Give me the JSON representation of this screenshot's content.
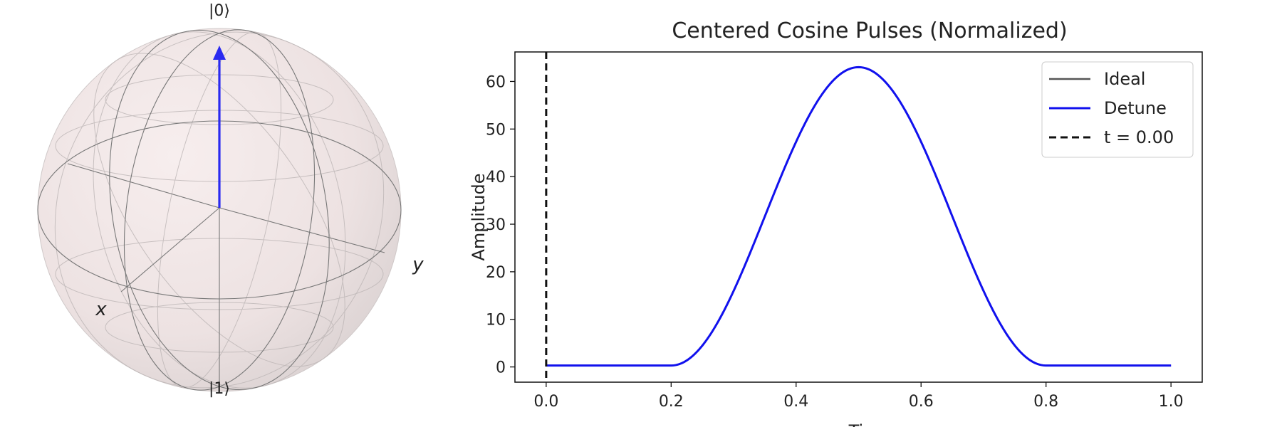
{
  "bloch": {
    "ket_zero": "|0⟩",
    "ket_one": "|1⟩",
    "x_label": "x",
    "y_label": "y",
    "state_vector": {
      "x": 0,
      "y": 0,
      "z": 1
    },
    "colors": {
      "sphere_fill": "#f2e6e6",
      "wire": "#808080",
      "state_arrow": "#2a2af0"
    }
  },
  "chart_data": {
    "type": "line",
    "title": "Centered Cosine Pulses (Normalized)",
    "xlabel": "Time",
    "ylabel": "Amplitude",
    "xlim": [
      -0.05,
      1.05
    ],
    "ylim": [
      -3.2,
      66.2
    ],
    "xticks": [
      "0.0",
      "0.2",
      "0.4",
      "0.6",
      "0.8",
      "1.0"
    ],
    "yticks": [
      "0",
      "10",
      "20",
      "30",
      "40",
      "50",
      "60"
    ],
    "grid": false,
    "legend_position": "top-right",
    "pulse": {
      "start": 0.2,
      "end": 0.8,
      "peak": 63.0,
      "baseline": 0.3,
      "t_min": 0.0,
      "t_max": 1.0
    },
    "series": [
      {
        "name": "Ideal",
        "color": "#555555",
        "style": "solid"
      },
      {
        "name": "Detune",
        "color": "#1111ee",
        "style": "solid"
      }
    ],
    "vline": {
      "name": "t = 0.00",
      "x": 0.0,
      "color": "#111111",
      "style": "dashed"
    }
  }
}
